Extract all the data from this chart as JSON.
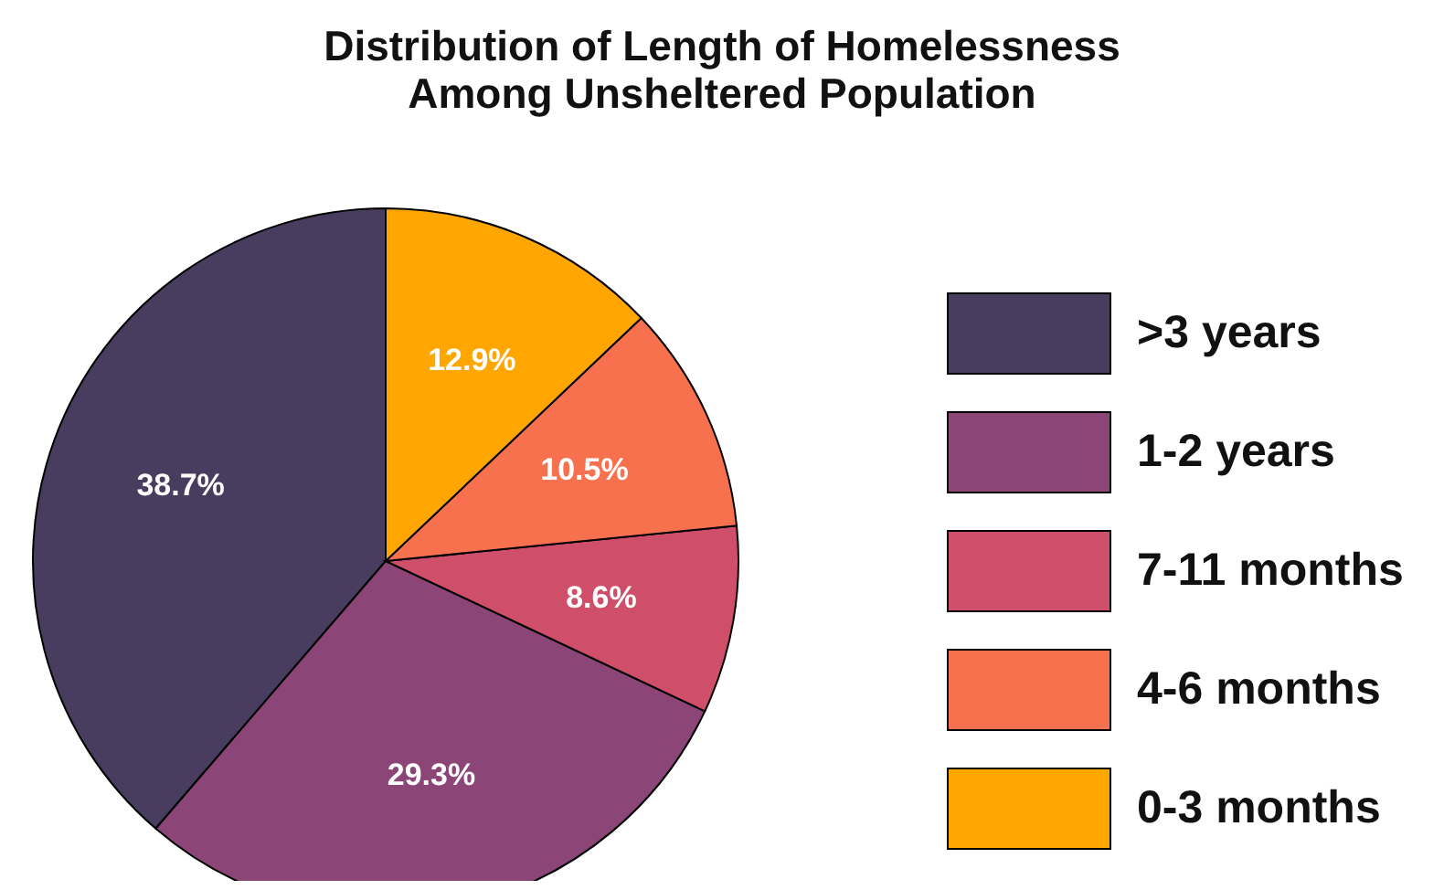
{
  "chart_data": {
    "type": "pie",
    "title": "Distribution of Length of Homelessness\nAmong Unsheltered Population",
    "categories": [
      ">3 years",
      "1-2 years",
      "7-11 months",
      "4-6 months",
      "0-3 months"
    ],
    "values": [
      38.7,
      29.3,
      8.6,
      10.5,
      12.9
    ],
    "value_labels": [
      "38.7%",
      "29.3%",
      "8.6%",
      "10.5%",
      "12.9%"
    ],
    "colors": [
      "#483d5f",
      "#8b4577",
      "#cf4f6b",
      "#f8714f",
      "#ffa600"
    ],
    "legend": "right"
  }
}
